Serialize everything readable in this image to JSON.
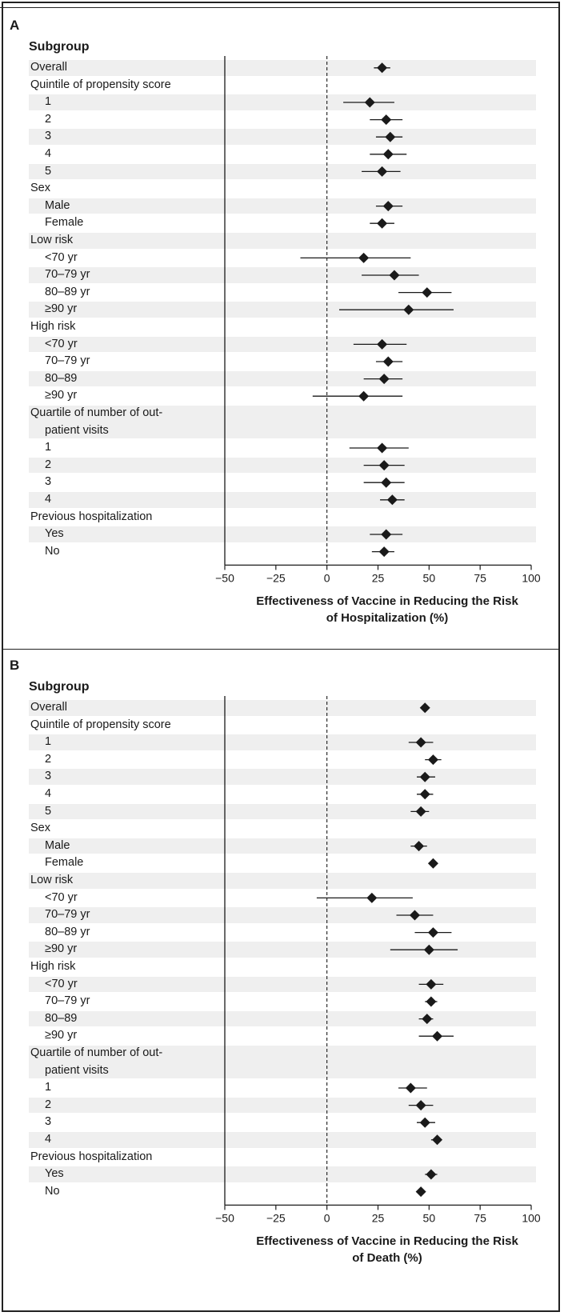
{
  "figure": {
    "colors": {
      "band": "#efefef",
      "marker": "#1a1a1a",
      "axis": "#1a1a1a"
    }
  },
  "chart_data": [
    {
      "panel_label": "A",
      "type": "forest",
      "subgroup_header": "Subgroup",
      "xlabel_lines": [
        "Effectiveness of Vaccine in Reducing the Risk",
        "of Hospitalization (%)"
      ],
      "xlim": [
        -50,
        100
      ],
      "xticks": [
        -50,
        -25,
        0,
        25,
        50,
        75,
        100
      ],
      "xtick_labels": [
        "−50",
        "−25",
        "0",
        "25",
        "50",
        "75",
        "100"
      ],
      "reference_line": 0,
      "rows": [
        {
          "label": "Overall",
          "indent": 0,
          "est": 27,
          "lo": 23,
          "hi": 31
        },
        {
          "label": "Quintile of propensity score",
          "indent": 0,
          "est": null
        },
        {
          "label": "1",
          "indent": 1,
          "est": 21,
          "lo": 8,
          "hi": 33
        },
        {
          "label": "2",
          "indent": 1,
          "est": 29,
          "lo": 21,
          "hi": 37
        },
        {
          "label": "3",
          "indent": 1,
          "est": 31,
          "lo": 24,
          "hi": 37
        },
        {
          "label": "4",
          "indent": 1,
          "est": 30,
          "lo": 21,
          "hi": 39
        },
        {
          "label": "5",
          "indent": 1,
          "est": 27,
          "lo": 17,
          "hi": 36
        },
        {
          "label": "Sex",
          "indent": 0,
          "est": null
        },
        {
          "label": "Male",
          "indent": 1,
          "est": 30,
          "lo": 24,
          "hi": 37
        },
        {
          "label": "Female",
          "indent": 1,
          "est": 27,
          "lo": 21,
          "hi": 33
        },
        {
          "label": "Low risk",
          "indent": 0,
          "est": null
        },
        {
          "label": "<70 yr",
          "indent": 1,
          "est": 18,
          "lo": -13,
          "hi": 41
        },
        {
          "label": "70–79  yr",
          "indent": 1,
          "est": 33,
          "lo": 17,
          "hi": 45
        },
        {
          "label": "80–89 yr",
          "indent": 1,
          "est": 49,
          "lo": 35,
          "hi": 61
        },
        {
          "label": "≥90 yr",
          "indent": 1,
          "est": 40,
          "lo": 6,
          "hi": 62
        },
        {
          "label": "High risk",
          "indent": 0,
          "est": null
        },
        {
          "label": "<70 yr",
          "indent": 1,
          "est": 27,
          "lo": 13,
          "hi": 39
        },
        {
          "label": "70–79 yr",
          "indent": 1,
          "est": 30,
          "lo": 24,
          "hi": 37
        },
        {
          "label": "80–89",
          "indent": 1,
          "est": 28,
          "lo": 18,
          "hi": 37
        },
        {
          "label": "≥90 yr",
          "indent": 1,
          "est": 18,
          "lo": -7,
          "hi": 37
        },
        {
          "label": "Quartile of number of out-",
          "label2": "patient visits",
          "indent": 0,
          "est": null
        },
        {
          "label": "1",
          "indent": 1,
          "est": 27,
          "lo": 11,
          "hi": 40
        },
        {
          "label": "2",
          "indent": 1,
          "est": 28,
          "lo": 18,
          "hi": 38
        },
        {
          "label": "3",
          "indent": 1,
          "est": 29,
          "lo": 18,
          "hi": 38
        },
        {
          "label": "4",
          "indent": 1,
          "est": 32,
          "lo": 26,
          "hi": 38
        },
        {
          "label": "Previous hospitalization",
          "indent": 0,
          "est": null
        },
        {
          "label": "Yes",
          "indent": 1,
          "est": 29,
          "lo": 21,
          "hi": 37
        },
        {
          "label": "No",
          "indent": 1,
          "est": 28,
          "lo": 22,
          "hi": 33
        }
      ]
    },
    {
      "panel_label": "B",
      "type": "forest",
      "subgroup_header": "Subgroup",
      "xlabel_lines": [
        "Effectiveness of Vaccine in Reducing the Risk",
        "of Death (%)"
      ],
      "xlim": [
        -50,
        100
      ],
      "xticks": [
        -50,
        -25,
        0,
        25,
        50,
        75,
        100
      ],
      "xtick_labels": [
        "−50",
        "−25",
        "0",
        "25",
        "50",
        "75",
        "100"
      ],
      "reference_line": 0,
      "rows": [
        {
          "label": "Overall",
          "indent": 0,
          "est": 48,
          "lo": 46,
          "hi": 50
        },
        {
          "label": "Quintile of propensity score",
          "indent": 0,
          "est": null
        },
        {
          "label": "1",
          "indent": 1,
          "est": 46,
          "lo": 40,
          "hi": 52
        },
        {
          "label": "2",
          "indent": 1,
          "est": 52,
          "lo": 48,
          "hi": 56
        },
        {
          "label": "3",
          "indent": 1,
          "est": 48,
          "lo": 44,
          "hi": 53
        },
        {
          "label": "4",
          "indent": 1,
          "est": 48,
          "lo": 44,
          "hi": 52
        },
        {
          "label": "5",
          "indent": 1,
          "est": 46,
          "lo": 41,
          "hi": 50
        },
        {
          "label": "Sex",
          "indent": 0,
          "est": null
        },
        {
          "label": "Male",
          "indent": 1,
          "est": 45,
          "lo": 41,
          "hi": 49
        },
        {
          "label": "Female",
          "indent": 1,
          "est": 52,
          "lo": 50,
          "hi": 54
        },
        {
          "label": "Low risk",
          "indent": 0,
          "est": null
        },
        {
          "label": "<70 yr",
          "indent": 1,
          "est": 22,
          "lo": -5,
          "hi": 42
        },
        {
          "label": "70–79  yr",
          "indent": 1,
          "est": 43,
          "lo": 34,
          "hi": 52
        },
        {
          "label": "80–89 yr",
          "indent": 1,
          "est": 52,
          "lo": 43,
          "hi": 61
        },
        {
          "label": "≥90 yr",
          "indent": 1,
          "est": 50,
          "lo": 31,
          "hi": 64
        },
        {
          "label": "High risk",
          "indent": 0,
          "est": null
        },
        {
          "label": "<70 yr",
          "indent": 1,
          "est": 51,
          "lo": 45,
          "hi": 57
        },
        {
          "label": "70–79 yr",
          "indent": 1,
          "est": 51,
          "lo": 48,
          "hi": 54
        },
        {
          "label": "80–89",
          "indent": 1,
          "est": 49,
          "lo": 45,
          "hi": 52
        },
        {
          "label": "≥90 yr",
          "indent": 1,
          "est": 54,
          "lo": 45,
          "hi": 62
        },
        {
          "label": "Quartile of number of out-",
          "label2": "patient visits",
          "indent": 0,
          "est": null
        },
        {
          "label": "1",
          "indent": 1,
          "est": 41,
          "lo": 35,
          "hi": 49
        },
        {
          "label": "2",
          "indent": 1,
          "est": 46,
          "lo": 40,
          "hi": 52
        },
        {
          "label": "3",
          "indent": 1,
          "est": 48,
          "lo": 44,
          "hi": 53
        },
        {
          "label": "4",
          "indent": 1,
          "est": 54,
          "lo": 51,
          "hi": 56
        },
        {
          "label": "Previous hospitalization",
          "indent": 0,
          "est": null
        },
        {
          "label": "Yes",
          "indent": 1,
          "est": 51,
          "lo": 48,
          "hi": 54
        },
        {
          "label": "No",
          "indent": 1,
          "est": 46,
          "lo": 44,
          "hi": 48
        }
      ]
    }
  ]
}
